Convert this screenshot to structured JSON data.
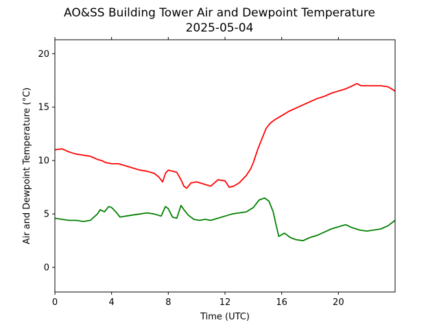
{
  "chart_data": {
    "type": "line",
    "title": "AO&SS Building Tower Air and Dewpoint Temperature",
    "subtitle": "2025-05-04",
    "xlabel": "Time (UTC)",
    "ylabel": "Air and Dewpoint Temperature (°C)",
    "xlim": [
      0,
      24
    ],
    "ylim": [
      -2.3,
      21.3
    ],
    "xticks": [
      0,
      4,
      8,
      12,
      16,
      20
    ],
    "yticks": [
      0,
      5,
      10,
      15,
      20
    ],
    "grid": false,
    "legend": "none",
    "series": [
      {
        "color": "#ff0000",
        "x": [
          0,
          0.5,
          1,
          1.5,
          2,
          2.5,
          3,
          3.3,
          3.6,
          4,
          4.5,
          5,
          5.5,
          6,
          6.5,
          7,
          7.3,
          7.6,
          7.8,
          8,
          8.3,
          8.6,
          8.9,
          9.1,
          9.3,
          9.6,
          10,
          10.5,
          11,
          11.5,
          12,
          12.3,
          12.6,
          13,
          13.5,
          13.8,
          14,
          14.3,
          14.6,
          14.9,
          15.2,
          15.5,
          16,
          16.5,
          17,
          17.5,
          18,
          18.5,
          19,
          19.5,
          20,
          20.5,
          21,
          21.3,
          21.6,
          22,
          22.5,
          23,
          23.5,
          24
        ],
        "y": [
          11.0,
          11.1,
          10.8,
          10.6,
          10.5,
          10.4,
          10.1,
          10.0,
          9.8,
          9.7,
          9.7,
          9.5,
          9.3,
          9.1,
          9.0,
          8.8,
          8.5,
          8.0,
          8.8,
          9.1,
          9.0,
          8.9,
          8.2,
          7.6,
          7.4,
          7.9,
          8.0,
          7.8,
          7.6,
          8.2,
          8.1,
          7.5,
          7.6,
          7.9,
          8.6,
          9.2,
          9.8,
          11.0,
          12.0,
          13.0,
          13.5,
          13.8,
          14.2,
          14.6,
          14.9,
          15.2,
          15.5,
          15.8,
          16.0,
          16.3,
          16.5,
          16.7,
          17.0,
          17.2,
          17.0,
          17.0,
          17.0,
          17.0,
          16.9,
          16.5
        ]
      },
      {
        "color": "#008000",
        "x": [
          0,
          0.5,
          1,
          1.5,
          2,
          2.5,
          3,
          3.2,
          3.5,
          3.8,
          4,
          4.3,
          4.6,
          5,
          5.5,
          6,
          6.5,
          7,
          7.5,
          7.8,
          8,
          8.3,
          8.6,
          8.9,
          9.1,
          9.4,
          9.8,
          10.2,
          10.6,
          11,
          11.5,
          12,
          12.5,
          13,
          13.5,
          14,
          14.4,
          14.8,
          15.1,
          15.4,
          15.6,
          15.8,
          16.2,
          16.6,
          17,
          17.5,
          18,
          18.5,
          19,
          19.5,
          20,
          20.5,
          21,
          21.5,
          22,
          22.5,
          23,
          23.5,
          24
        ],
        "y": [
          4.6,
          4.5,
          4.4,
          4.4,
          4.3,
          4.4,
          5.0,
          5.4,
          5.2,
          5.7,
          5.6,
          5.2,
          4.7,
          4.8,
          4.9,
          5.0,
          5.1,
          5.0,
          4.8,
          5.7,
          5.5,
          4.7,
          4.6,
          5.8,
          5.4,
          4.9,
          4.5,
          4.4,
          4.5,
          4.4,
          4.6,
          4.8,
          5.0,
          5.1,
          5.2,
          5.6,
          6.3,
          6.5,
          6.2,
          5.2,
          4.0,
          2.9,
          3.2,
          2.8,
          2.6,
          2.5,
          2.8,
          3.0,
          3.3,
          3.6,
          3.8,
          4.0,
          3.7,
          3.5,
          3.4,
          3.5,
          3.6,
          3.9,
          4.4
        ]
      }
    ]
  }
}
